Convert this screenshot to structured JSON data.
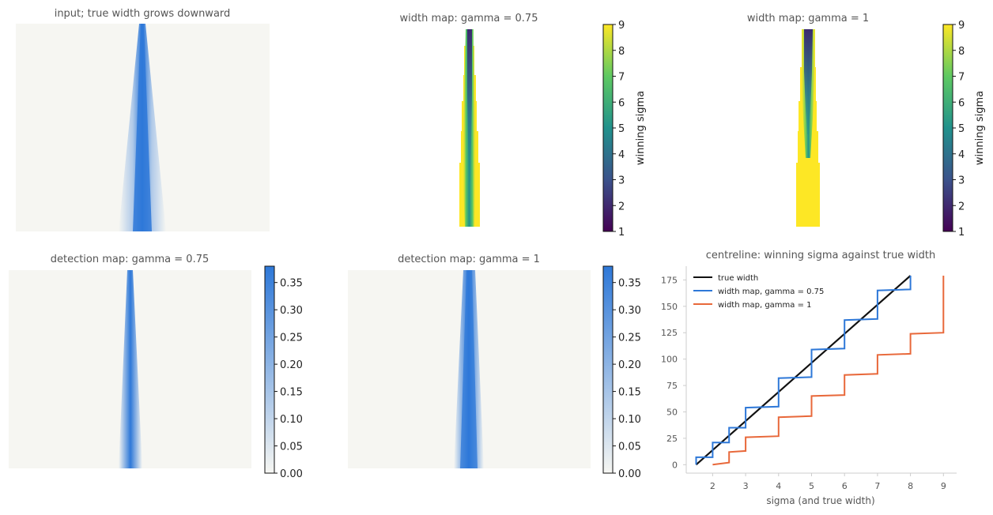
{
  "colors": {
    "background": "#f6f6f2",
    "blue": "#2e78d8",
    "orange": "#e8683a",
    "black": "#111111",
    "viridis": [
      "#440154",
      "#3b528b",
      "#21918c",
      "#5ec962",
      "#fde725"
    ]
  },
  "chart_data": [
    {
      "type": "heatmap",
      "panel": "input",
      "title": "input; true width grows downward"
    },
    {
      "type": "heatmap",
      "panel": "width_map_075",
      "title": "width map: gamma = 0.75",
      "colorbar": {
        "label": "winning sigma",
        "ticks": [
          "1",
          "2",
          "3",
          "4",
          "5",
          "6",
          "7",
          "8",
          "9"
        ],
        "range": [
          1,
          9
        ]
      }
    },
    {
      "type": "heatmap",
      "panel": "width_map_1",
      "title": "width map: gamma = 1",
      "colorbar": {
        "label": "winning sigma",
        "ticks": [
          "1",
          "2",
          "3",
          "4",
          "5",
          "6",
          "7",
          "8",
          "9"
        ],
        "range": [
          1,
          9
        ]
      }
    },
    {
      "type": "heatmap",
      "panel": "detection_075",
      "title": "detection map: gamma = 0.75",
      "colorbar": {
        "ticks": [
          "0.00",
          "0.05",
          "0.10",
          "0.15",
          "0.20",
          "0.25",
          "0.30",
          "0.35"
        ],
        "range": [
          0,
          0.38
        ]
      }
    },
    {
      "type": "heatmap",
      "panel": "detection_1",
      "title": "detection map: gamma = 1",
      "colorbar": {
        "ticks": [
          "0.00",
          "0.05",
          "0.10",
          "0.15",
          "0.20",
          "0.25",
          "0.30",
          "0.35"
        ],
        "range": [
          0,
          0.38
        ]
      }
    },
    {
      "type": "line",
      "panel": "centreline",
      "title": "centreline: winning sigma against true width",
      "xlabel": "sigma  (and true width)",
      "ylabel": "",
      "xlim": [
        1.2,
        9.4
      ],
      "ylim": [
        -8,
        188
      ],
      "xticks": [
        "2",
        "3",
        "4",
        "5",
        "6",
        "7",
        "8",
        "9"
      ],
      "yticks": [
        "0",
        "25",
        "50",
        "75",
        "100",
        "125",
        "150",
        "175"
      ],
      "legend_position": "top-left",
      "series": [
        {
          "name": "true width",
          "color": "#111111",
          "points": [
            [
              1.5,
              0
            ],
            [
              8.0,
              179
            ]
          ]
        },
        {
          "name": "width map, gamma = 0.75",
          "color": "#2e78d8",
          "points": [
            [
              1.5,
              0
            ],
            [
              1.5,
              7
            ],
            [
              2.0,
              7
            ],
            [
              2.0,
              21
            ],
            [
              2.5,
              21
            ],
            [
              2.5,
              35
            ],
            [
              3.0,
              35
            ],
            [
              3.0,
              54
            ],
            [
              4.0,
              55
            ],
            [
              4.0,
              82
            ],
            [
              5.0,
              83
            ],
            [
              5.0,
              109
            ],
            [
              6.0,
              110
            ],
            [
              6.0,
              137
            ],
            [
              7.0,
              138
            ],
            [
              7.0,
              165
            ],
            [
              8.0,
              166
            ],
            [
              8.0,
              179
            ]
          ]
        },
        {
          "name": "width map, gamma = 1",
          "color": "#e8683a",
          "points": [
            [
              2.0,
              0
            ],
            [
              2.5,
              2
            ],
            [
              2.5,
              12
            ],
            [
              3.0,
              13
            ],
            [
              3.0,
              26
            ],
            [
              4.0,
              27
            ],
            [
              4.0,
              45
            ],
            [
              5.0,
              46
            ],
            [
              5.0,
              65
            ],
            [
              6.0,
              66
            ],
            [
              6.0,
              85
            ],
            [
              7.0,
              86
            ],
            [
              7.0,
              104
            ],
            [
              8.0,
              105
            ],
            [
              8.0,
              124
            ],
            [
              9.0,
              125
            ],
            [
              9.0,
              179
            ]
          ]
        }
      ]
    }
  ]
}
